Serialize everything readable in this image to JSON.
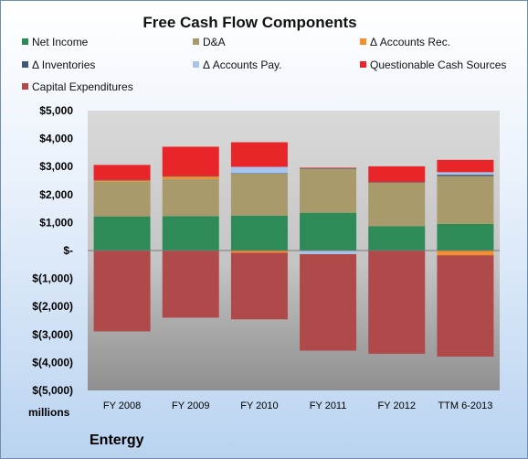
{
  "chart_data": {
    "type": "bar",
    "stacked": true,
    "title": "Free Cash Flow Components",
    "categories": [
      "FY 2008",
      "FY 2009",
      "FY 2010",
      "FY 2011",
      "FY 2012",
      "TTM 6-2013"
    ],
    "series": [
      {
        "name": "Net Income",
        "color": "#2e8b57",
        "values": [
          1220,
          1230,
          1250,
          1350,
          870,
          950
        ]
      },
      {
        "name": "D&A",
        "color": "#a89a6a",
        "values": [
          1240,
          1330,
          1500,
          1580,
          1570,
          1710
        ]
      },
      {
        "name": "Δ Accounts Rec.",
        "color": "#f28e2b",
        "values": [
          50,
          90,
          -80,
          -20,
          0,
          -170
        ]
      },
      {
        "name": "Δ Inventories",
        "color": "#3f5a78",
        "values": [
          10,
          10,
          10,
          10,
          10,
          50
        ]
      },
      {
        "name": "Δ Accounts Pay.",
        "color": "#a9c4ea",
        "values": [
          0,
          0,
          230,
          -110,
          0,
          90
        ]
      },
      {
        "name": "Questionable Cash Sources",
        "color": "#e8262a",
        "values": [
          540,
          1050,
          880,
          20,
          560,
          440
        ]
      },
      {
        "name": "Capital Expenditures",
        "color": "#b04a4a",
        "values": [
          -2890,
          -2400,
          -2380,
          -3450,
          -3690,
          -3620
        ]
      }
    ],
    "ylim": [
      -5000,
      5000
    ],
    "yticks": [
      5000,
      4000,
      3000,
      2000,
      1000,
      0,
      -1000,
      -2000,
      -3000,
      -4000,
      -5000
    ],
    "ytick_labels": [
      "$5,000",
      "$4,000",
      "$3,000",
      "$2,000",
      "$1,000",
      "$-",
      "$(1,000)",
      "$(2,000)",
      "$(3,000)",
      "$(4,000)",
      "$(5,000)"
    ],
    "unit_label": "millions",
    "legend_position": "top",
    "grid": false,
    "plot_background": "#c8c8c8"
  },
  "company": "Entergy"
}
